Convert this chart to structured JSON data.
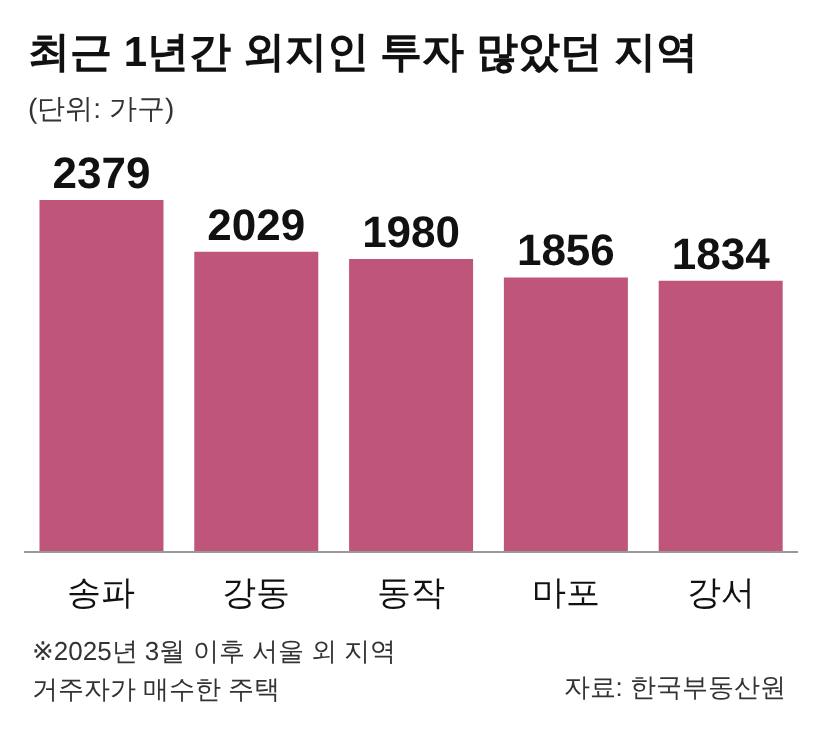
{
  "chart_data": {
    "type": "bar",
    "title": "최근 1년간 외지인 투자 많았던 지역",
    "subtitle": "(단위: 가구)",
    "categories": [
      "송파",
      "강동",
      "동작",
      "마포",
      "강서"
    ],
    "values": [
      2379,
      2029,
      1980,
      1856,
      1834
    ],
    "color": "#c0557c",
    "data_labels": true,
    "annotations": [
      "※2025년 3월 이후 서울 외 지역\n거주자가 매수한 주택",
      "자료: 한국부동산원"
    ]
  }
}
